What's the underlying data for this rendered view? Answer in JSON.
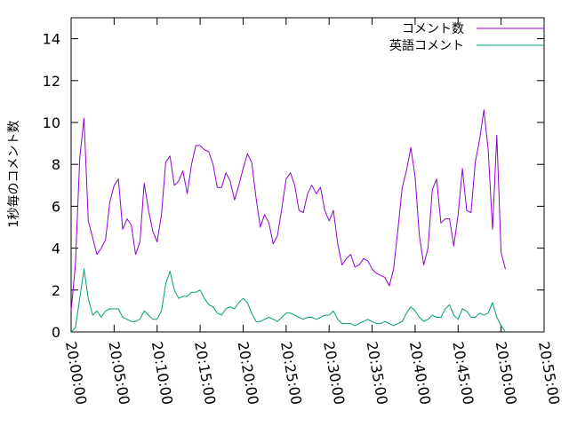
{
  "chart_data": {
    "type": "line",
    "title": "",
    "xlabel": "",
    "ylabel": "1秒毎のコメント数",
    "xlim": [
      "20:00:00",
      "20:55:00"
    ],
    "ylim": [
      0,
      15
    ],
    "grid": false,
    "legend_position": "top-right",
    "x_ticks": [
      "20:00:00",
      "20:05:00",
      "20:10:00",
      "20:15:00",
      "20:20:00",
      "20:25:00",
      "20:30:00",
      "20:35:00",
      "20:40:00",
      "20:45:00",
      "20:50:00",
      "20:55:00"
    ],
    "y_ticks": [
      0,
      2,
      4,
      6,
      8,
      10,
      12,
      14
    ],
    "series": [
      {
        "name": "コメント数",
        "color": "#9400d3",
        "points": [
          [
            "20:00:00",
            1.0
          ],
          [
            "20:00:30",
            3.2
          ],
          [
            "20:01:00",
            8.3
          ],
          [
            "20:01:30",
            10.2
          ],
          [
            "20:02:00",
            5.3
          ],
          [
            "20:02:30",
            4.5
          ],
          [
            "20:03:00",
            3.7
          ],
          [
            "20:03:30",
            4.0
          ],
          [
            "20:04:00",
            4.4
          ],
          [
            "20:04:30",
            6.2
          ],
          [
            "20:05:00",
            7.0
          ],
          [
            "20:05:30",
            7.3
          ],
          [
            "20:06:00",
            4.9
          ],
          [
            "20:06:30",
            5.4
          ],
          [
            "20:07:00",
            5.1
          ],
          [
            "20:07:30",
            3.7
          ],
          [
            "20:08:00",
            4.3
          ],
          [
            "20:08:30",
            7.1
          ],
          [
            "20:09:00",
            5.8
          ],
          [
            "20:09:30",
            4.8
          ],
          [
            "20:10:00",
            4.3
          ],
          [
            "20:10:30",
            5.6
          ],
          [
            "20:11:00",
            8.1
          ],
          [
            "20:11:30",
            8.4
          ],
          [
            "20:12:00",
            7.0
          ],
          [
            "20:12:30",
            7.2
          ],
          [
            "20:13:00",
            7.7
          ],
          [
            "20:13:30",
            6.6
          ],
          [
            "20:14:00",
            8.0
          ],
          [
            "20:14:30",
            8.9
          ],
          [
            "20:15:00",
            8.9
          ],
          [
            "20:15:30",
            8.7
          ],
          [
            "20:16:00",
            8.6
          ],
          [
            "20:16:30",
            8.0
          ],
          [
            "20:17:00",
            6.9
          ],
          [
            "20:17:30",
            6.9
          ],
          [
            "20:18:00",
            7.6
          ],
          [
            "20:18:30",
            7.2
          ],
          [
            "20:19:00",
            6.3
          ],
          [
            "20:19:30",
            7.0
          ],
          [
            "20:20:00",
            7.8
          ],
          [
            "20:20:30",
            8.5
          ],
          [
            "20:21:00",
            8.1
          ],
          [
            "20:21:30",
            6.4
          ],
          [
            "20:22:00",
            5.0
          ],
          [
            "20:22:30",
            5.6
          ],
          [
            "20:23:00",
            5.2
          ],
          [
            "20:23:30",
            4.2
          ],
          [
            "20:24:00",
            4.6
          ],
          [
            "20:24:30",
            5.9
          ],
          [
            "20:25:00",
            7.3
          ],
          [
            "20:25:30",
            7.6
          ],
          [
            "20:26:00",
            7.0
          ],
          [
            "20:26:30",
            5.8
          ],
          [
            "20:27:00",
            5.7
          ],
          [
            "20:27:30",
            6.6
          ],
          [
            "20:28:00",
            7.0
          ],
          [
            "20:28:30",
            6.6
          ],
          [
            "20:29:00",
            6.9
          ],
          [
            "20:29:30",
            5.8
          ],
          [
            "20:30:00",
            5.3
          ],
          [
            "20:30:30",
            5.8
          ],
          [
            "20:31:00",
            4.2
          ],
          [
            "20:31:30",
            3.2
          ],
          [
            "20:32:00",
            3.5
          ],
          [
            "20:32:30",
            3.7
          ],
          [
            "20:33:00",
            3.1
          ],
          [
            "20:33:30",
            3.2
          ],
          [
            "20:34:00",
            3.5
          ],
          [
            "20:34:30",
            3.4
          ],
          [
            "20:35:00",
            3.0
          ],
          [
            "20:35:30",
            2.8
          ],
          [
            "20:36:00",
            2.7
          ],
          [
            "20:36:30",
            2.6
          ],
          [
            "20:37:00",
            2.2
          ],
          [
            "20:37:30",
            3.0
          ],
          [
            "20:38:00",
            4.9
          ],
          [
            "20:38:30",
            6.9
          ],
          [
            "20:39:00",
            7.7
          ],
          [
            "20:39:30",
            8.8
          ],
          [
            "20:40:00",
            7.4
          ],
          [
            "20:40:30",
            4.6
          ],
          [
            "20:41:00",
            3.2
          ],
          [
            "20:41:30",
            4.0
          ],
          [
            "20:42:00",
            6.8
          ],
          [
            "20:42:30",
            7.3
          ],
          [
            "20:43:00",
            5.2
          ],
          [
            "20:43:30",
            5.4
          ],
          [
            "20:44:00",
            5.4
          ],
          [
            "20:44:30",
            4.1
          ],
          [
            "20:45:00",
            5.6
          ],
          [
            "20:45:30",
            7.8
          ],
          [
            "20:46:00",
            5.8
          ],
          [
            "20:46:30",
            5.7
          ],
          [
            "20:47:00",
            8.1
          ],
          [
            "20:47:30",
            9.2
          ],
          [
            "20:48:00",
            10.6
          ],
          [
            "20:48:30",
            8.7
          ],
          [
            "20:49:00",
            4.9
          ],
          [
            "20:49:30",
            9.4
          ],
          [
            "20:50:00",
            3.8
          ],
          [
            "20:50:30",
            3.0
          ]
        ]
      },
      {
        "name": "英語コメント",
        "color": "#009e73",
        "points": [
          [
            "20:00:00",
            0.0
          ],
          [
            "20:00:30",
            0.2
          ],
          [
            "20:01:00",
            1.6
          ],
          [
            "20:01:30",
            3.0
          ],
          [
            "20:02:00",
            1.6
          ],
          [
            "20:02:30",
            0.8
          ],
          [
            "20:03:00",
            1.0
          ],
          [
            "20:03:30",
            0.7
          ],
          [
            "20:04:00",
            1.0
          ],
          [
            "20:04:30",
            1.1
          ],
          [
            "20:05:00",
            1.1
          ],
          [
            "20:05:30",
            1.1
          ],
          [
            "20:06:00",
            0.7
          ],
          [
            "20:06:30",
            0.6
          ],
          [
            "20:07:00",
            0.5
          ],
          [
            "20:07:30",
            0.5
          ],
          [
            "20:08:00",
            0.6
          ],
          [
            "20:08:30",
            1.0
          ],
          [
            "20:09:00",
            0.8
          ],
          [
            "20:09:30",
            0.6
          ],
          [
            "20:10:00",
            0.6
          ],
          [
            "20:10:30",
            1.0
          ],
          [
            "20:11:00",
            2.3
          ],
          [
            "20:11:30",
            2.9
          ],
          [
            "20:12:00",
            2.0
          ],
          [
            "20:12:30",
            1.6
          ],
          [
            "20:13:00",
            1.7
          ],
          [
            "20:13:30",
            1.7
          ],
          [
            "20:14:00",
            1.9
          ],
          [
            "20:14:30",
            1.9
          ],
          [
            "20:15:00",
            2.0
          ],
          [
            "20:15:30",
            1.6
          ],
          [
            "20:16:00",
            1.3
          ],
          [
            "20:16:30",
            1.2
          ],
          [
            "20:17:00",
            0.9
          ],
          [
            "20:17:30",
            0.8
          ],
          [
            "20:18:00",
            1.1
          ],
          [
            "20:18:30",
            1.2
          ],
          [
            "20:19:00",
            1.1
          ],
          [
            "20:19:30",
            1.4
          ],
          [
            "20:20:00",
            1.6
          ],
          [
            "20:20:30",
            1.4
          ],
          [
            "20:21:00",
            0.9
          ],
          [
            "20:21:30",
            0.5
          ],
          [
            "20:22:00",
            0.5
          ],
          [
            "20:22:30",
            0.6
          ],
          [
            "20:23:00",
            0.7
          ],
          [
            "20:23:30",
            0.6
          ],
          [
            "20:24:00",
            0.5
          ],
          [
            "20:24:30",
            0.7
          ],
          [
            "20:25:00",
            0.9
          ],
          [
            "20:25:30",
            0.9
          ],
          [
            "20:26:00",
            0.8
          ],
          [
            "20:26:30",
            0.7
          ],
          [
            "20:27:00",
            0.6
          ],
          [
            "20:27:30",
            0.7
          ],
          [
            "20:28:00",
            0.7
          ],
          [
            "20:28:30",
            0.6
          ],
          [
            "20:29:00",
            0.7
          ],
          [
            "20:29:30",
            0.8
          ],
          [
            "20:30:00",
            0.8
          ],
          [
            "20:30:30",
            1.0
          ],
          [
            "20:31:00",
            0.6
          ],
          [
            "20:31:30",
            0.4
          ],
          [
            "20:32:00",
            0.4
          ],
          [
            "20:32:30",
            0.4
          ],
          [
            "20:33:00",
            0.3
          ],
          [
            "20:33:30",
            0.4
          ],
          [
            "20:34:00",
            0.5
          ],
          [
            "20:34:30",
            0.6
          ],
          [
            "20:35:00",
            0.5
          ],
          [
            "20:35:30",
            0.4
          ],
          [
            "20:36:00",
            0.4
          ],
          [
            "20:36:30",
            0.5
          ],
          [
            "20:37:00",
            0.4
          ],
          [
            "20:37:30",
            0.3
          ],
          [
            "20:38:00",
            0.4
          ],
          [
            "20:38:30",
            0.5
          ],
          [
            "20:39:00",
            0.9
          ],
          [
            "20:39:30",
            1.2
          ],
          [
            "20:40:00",
            1.0
          ],
          [
            "20:40:30",
            0.7
          ],
          [
            "20:41:00",
            0.5
          ],
          [
            "20:41:30",
            0.6
          ],
          [
            "20:42:00",
            0.8
          ],
          [
            "20:42:30",
            0.7
          ],
          [
            "20:43:00",
            0.7
          ],
          [
            "20:43:30",
            1.1
          ],
          [
            "20:44:00",
            1.3
          ],
          [
            "20:44:30",
            0.8
          ],
          [
            "20:45:00",
            0.6
          ],
          [
            "20:45:30",
            1.1
          ],
          [
            "20:46:00",
            1.0
          ],
          [
            "20:46:30",
            0.7
          ],
          [
            "20:47:00",
            0.7
          ],
          [
            "20:47:30",
            0.9
          ],
          [
            "20:48:00",
            0.8
          ],
          [
            "20:48:30",
            0.9
          ],
          [
            "20:49:00",
            1.4
          ],
          [
            "20:49:30",
            0.7
          ],
          [
            "20:50:00",
            0.3
          ],
          [
            "20:50:30",
            0.0
          ]
        ]
      }
    ]
  }
}
